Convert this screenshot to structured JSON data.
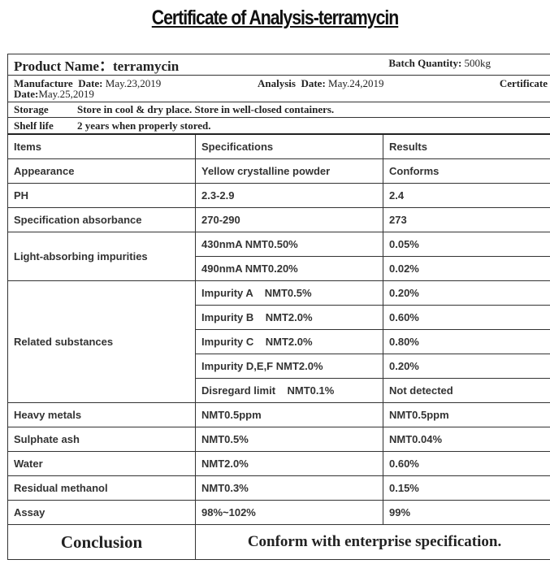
{
  "title": "Certificate of Analysis-terramycin",
  "header": {
    "product_label": "Product Name：",
    "product_value": "terramycin",
    "batch_label": "Batch Quantity:",
    "batch_value": "500kg",
    "manufacture_label": "Manufacture  Date:",
    "manufacture_value": "May.23,2019",
    "analysis_label": "Analysis  Date:",
    "analysis_value": "May.24,2019",
    "certificate_label": "Certificate",
    "certificate_label2": "Date:",
    "certificate_value": "May.25,2019",
    "storage_label": "Storage",
    "storage_value": "Store in cool & dry place. Store in well-closed containers.",
    "shelflife_label": "Shelf life",
    "shelflife_value": "2 years when properly stored."
  },
  "columns": [
    "Items",
    "Specifications",
    "Results"
  ],
  "rows": [
    {
      "item": "Appearance",
      "spec": "Yellow crystalline powder",
      "result": "Conforms"
    },
    {
      "item": "PH",
      "spec": "2.3-2.9",
      "result": "2.4"
    },
    {
      "item": "Specification absorbance",
      "spec": "270-290",
      "result": "273"
    },
    {
      "item": "Heavy metals",
      "spec": "NMT0.5ppm",
      "result": "NMT0.5ppm"
    },
    {
      "item": "Sulphate ash",
      "spec": "NMT0.5%",
      "result": "NMT0.04%"
    },
    {
      "item": "Water",
      "spec": "NMT2.0%",
      "result": "0.60%"
    },
    {
      "item": "Residual methanol",
      "spec": "NMT0.3%",
      "result": "0.15%"
    },
    {
      "item": "Assay",
      "spec": "98%~102%",
      "result": "99%"
    }
  ],
  "light": {
    "item": "Light-absorbing impurities",
    "subs": [
      {
        "spec": "430nmA NMT0.50%",
        "result": "0.05%"
      },
      {
        "spec": "490nmA NMT0.20%",
        "result": "0.02%"
      }
    ]
  },
  "related": {
    "item": "Related substances",
    "subs": [
      {
        "spec": "Impurity A    NMT0.5%",
        "result": "0.20%"
      },
      {
        "spec": "Impurity B    NMT2.0%",
        "result": "0.60%"
      },
      {
        "spec": "Impurity C    NMT2.0%",
        "result": "0.80%"
      },
      {
        "spec": "Impurity D,E,F NMT2.0%",
        "result": "0.20%"
      },
      {
        "spec": "Disregard limit    NMT0.1%",
        "result": "Not detected"
      }
    ]
  },
  "conclusion": {
    "label": "Conclusion",
    "value": "Conform with enterprise specification."
  }
}
